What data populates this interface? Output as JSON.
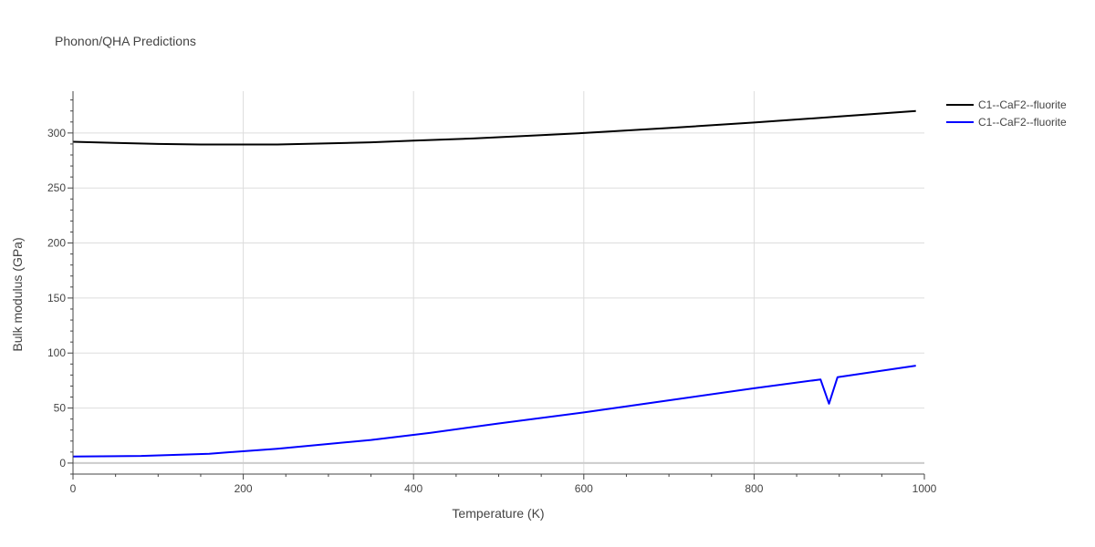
{
  "chart_data": {
    "type": "line",
    "title": "Phonon/QHA Predictions",
    "xlabel": "Temperature (K)",
    "ylabel": "Bulk modulus (GPa)",
    "xlim": [
      0,
      1000
    ],
    "ylim": [
      -10,
      338
    ],
    "x_ticks": [
      0,
      200,
      400,
      600,
      800,
      1000
    ],
    "y_ticks": [
      0,
      50,
      100,
      150,
      200,
      250,
      300
    ],
    "grid": true,
    "legend_position": "top-right",
    "series": [
      {
        "name": "C1--CaF2--fluorite",
        "color": "#000000",
        "x": [
          0,
          50,
          100,
          150,
          200,
          240,
          300,
          350,
          400,
          470,
          550,
          600,
          700,
          800,
          900,
          990
        ],
        "y": [
          292,
          291,
          290,
          289.5,
          289.5,
          289.5,
          290.5,
          291.5,
          293,
          295,
          298,
          300,
          304.5,
          309.5,
          315,
          320
        ]
      },
      {
        "name": "C1--CaF2--fluorite",
        "color": "#0000ff",
        "x": [
          0,
          80,
          160,
          240,
          350,
          420,
          500,
          600,
          700,
          800,
          878,
          888,
          898,
          990
        ],
        "y": [
          6,
          6.5,
          8.5,
          13,
          21,
          27.5,
          36,
          46,
          57,
          68,
          76,
          54,
          78,
          88.5
        ]
      }
    ]
  }
}
